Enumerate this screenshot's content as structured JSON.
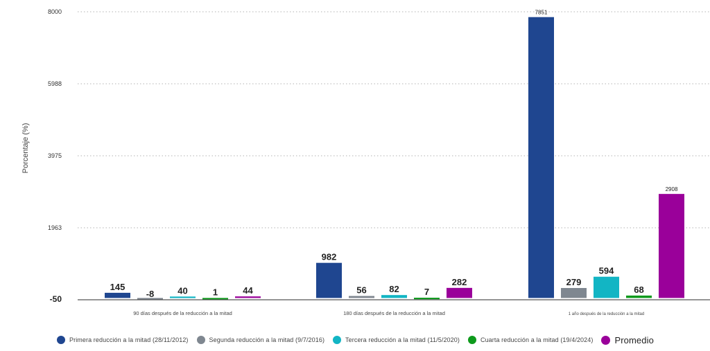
{
  "chart_data": {
    "type": "bar",
    "ylabel": "Porcentaje (%)",
    "ylim": [
      -50,
      8000
    ],
    "yticks": [
      -50,
      1963,
      3975,
      5988,
      8000
    ],
    "ytick_labels": [
      "-50",
      "1963",
      "3975",
      "5988",
      "8000"
    ],
    "grid": true,
    "legend_position": "bottom",
    "categories": [
      "90 días después de la reducción a la mitad",
      "180 días después de la reducción a la mitad",
      "1 año después de la reducción a la mitad"
    ],
    "series": [
      {
        "name": "Primera reducción a la mitad (28/11/2012)",
        "color": "#1f4690",
        "values": [
          145,
          982,
          7851
        ],
        "labels": [
          "145",
          "982",
          "7851"
        ]
      },
      {
        "name": "Segunda reducción a la mitad (9/7/2016)",
        "color": "#7f8790",
        "values": [
          -8,
          56,
          279
        ],
        "labels": [
          "-8",
          "56",
          "279"
        ]
      },
      {
        "name": "Tercera reducción a la mitad (11/5/2020)",
        "color": "#12b5c4",
        "values": [
          40,
          82,
          594
        ],
        "labels": [
          "40",
          "82",
          "594"
        ]
      },
      {
        "name": "Cuarta reducción a la mitad (19/4/2024)",
        "color": "#0e9a1c",
        "values": [
          1,
          7,
          68
        ],
        "labels": [
          "1",
          "7",
          "68"
        ]
      },
      {
        "name": "Promedio",
        "color": "#9a009a",
        "values": [
          44,
          282,
          2908
        ],
        "labels": [
          "44",
          "282",
          "2908"
        ]
      }
    ]
  }
}
